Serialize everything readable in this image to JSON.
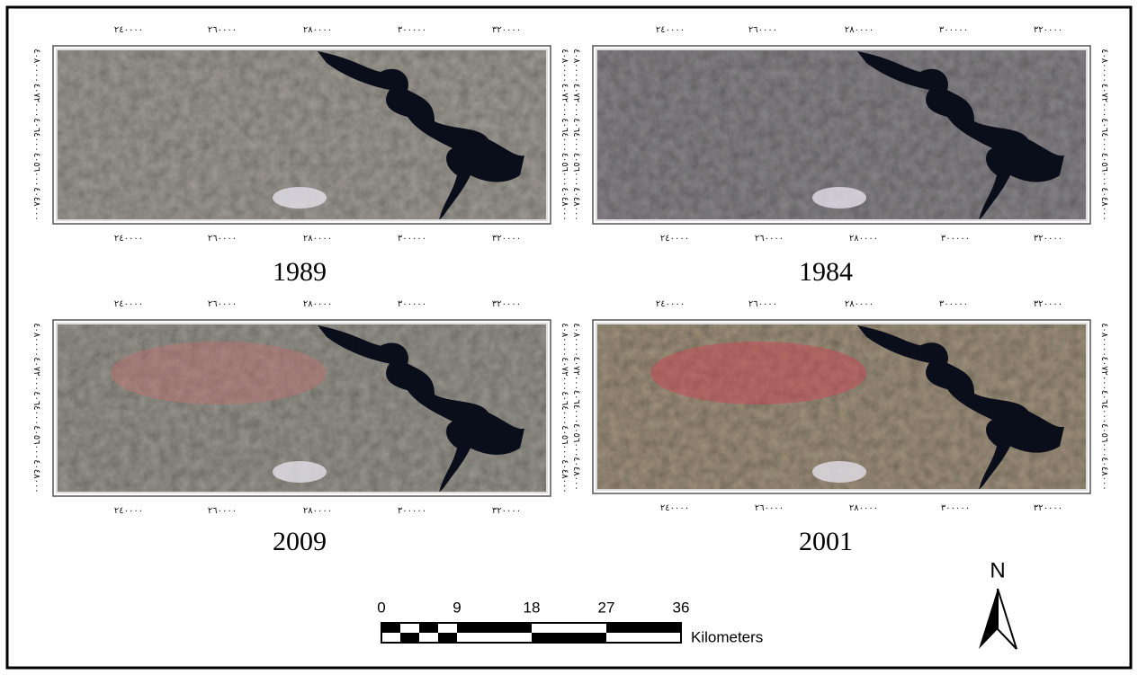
{
  "panels": [
    {
      "year": "1989"
    },
    {
      "year": "1984"
    },
    {
      "year": "2009"
    },
    {
      "year": "2001"
    }
  ],
  "x_tick_labels": [
    "٢٤٠٠٠٠",
    "٢٦٠٠٠٠",
    "٢٨٠٠٠٠",
    "٣٠٠٠٠٠",
    "٣٢٠٠٠٠"
  ],
  "y_tick_labels": [
    "٤٠٨٠٠٠٠",
    "٤٠٧٢٠٠٠",
    "٤٠٦٤٠٠٠",
    "٤٠٥٦٠٠٠",
    "٤٠٤٨٠٠٠"
  ],
  "scale_bar": {
    "labels": [
      "0",
      "9",
      "18",
      "27",
      "36"
    ],
    "unit": "Kilometers"
  },
  "north_arrow": "N"
}
